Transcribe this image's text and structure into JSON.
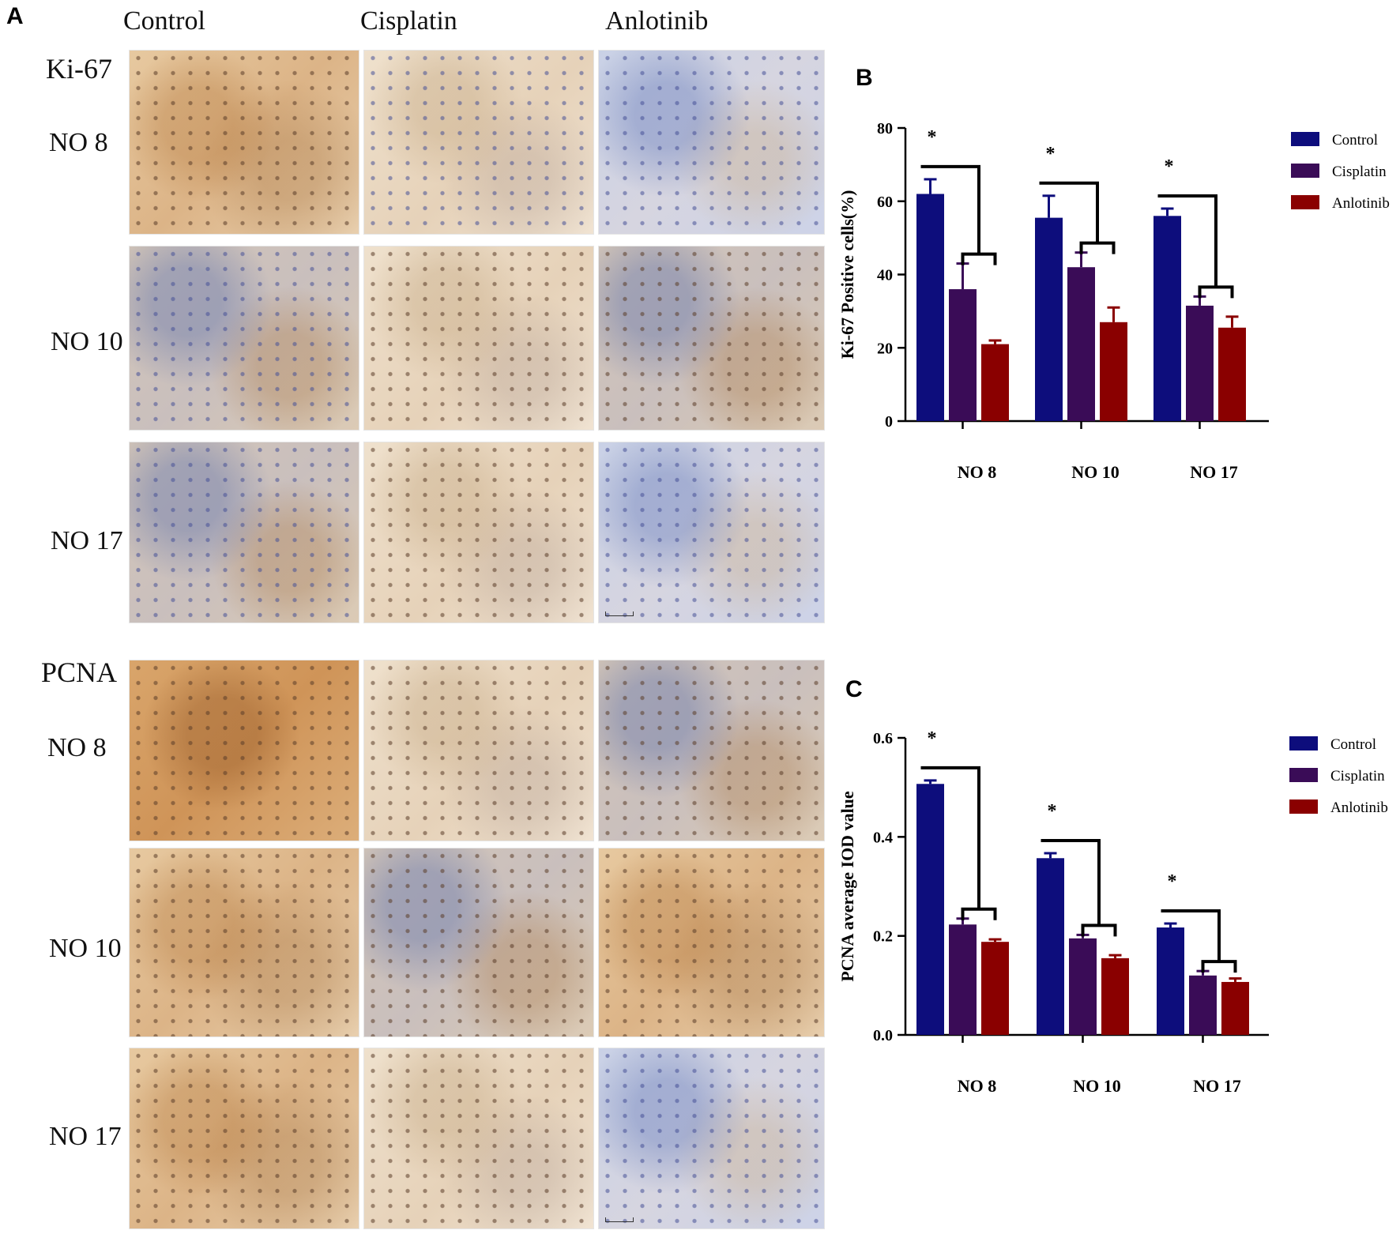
{
  "panel_a": {
    "letter": "A",
    "columns": [
      "Control",
      "Cisplatin",
      "Anlotinib"
    ],
    "ki67_block": {
      "marker": "Ki-67",
      "rows": [
        "NO 8",
        "NO 10",
        "NO 17"
      ]
    },
    "pcna_block": {
      "marker": "PCNA",
      "rows": [
        "NO 8",
        "NO 10",
        "NO 17"
      ]
    }
  },
  "panel_b_letter": "B",
  "panel_c_letter": "C",
  "colors": {
    "control": "#0d0d7c",
    "cisplatin": "#3a0c57",
    "anlotinib": "#8a0000"
  },
  "chart_data": [
    {
      "type": "bar",
      "categories": [
        "NO 8",
        "NO 10",
        "NO 17"
      ],
      "series": [
        {
          "name": "Control",
          "values": [
            62,
            55.5,
            56
          ],
          "errors": [
            4,
            6,
            2
          ]
        },
        {
          "name": "Cisplatin",
          "values": [
            36,
            42,
            31.5
          ],
          "errors": [
            7,
            4,
            2.5
          ]
        },
        {
          "name": "Anlotinib",
          "values": [
            21,
            27,
            25.5
          ],
          "errors": [
            1,
            4,
            3
          ]
        }
      ],
      "ylabel": "Ki-67 Positive cells(%)",
      "xlabel": "",
      "ylim": [
        0,
        80
      ],
      "yticks": [
        0,
        20,
        40,
        60,
        80
      ],
      "significance": [
        "*",
        "*",
        "*"
      ],
      "legend": "right"
    },
    {
      "type": "bar",
      "categories": [
        "NO 8",
        "NO 10",
        "NO 17"
      ],
      "series": [
        {
          "name": "Control",
          "values": [
            0.507,
            0.357,
            0.217
          ],
          "errors": [
            0.007,
            0.01,
            0.008
          ]
        },
        {
          "name": "Cisplatin",
          "values": [
            0.223,
            0.195,
            0.12
          ],
          "errors": [
            0.012,
            0.007,
            0.009
          ]
        },
        {
          "name": "Anlotinib",
          "values": [
            0.188,
            0.155,
            0.107
          ],
          "errors": [
            0.005,
            0.006,
            0.007
          ]
        }
      ],
      "ylabel": "PCNA average IOD value",
      "xlabel": "",
      "ylim": [
        0,
        0.6
      ],
      "yticks": [
        "0.0",
        "0.2",
        "0.4",
        "0.6"
      ],
      "significance": [
        "*",
        "*",
        "*"
      ],
      "legend": "right"
    }
  ]
}
